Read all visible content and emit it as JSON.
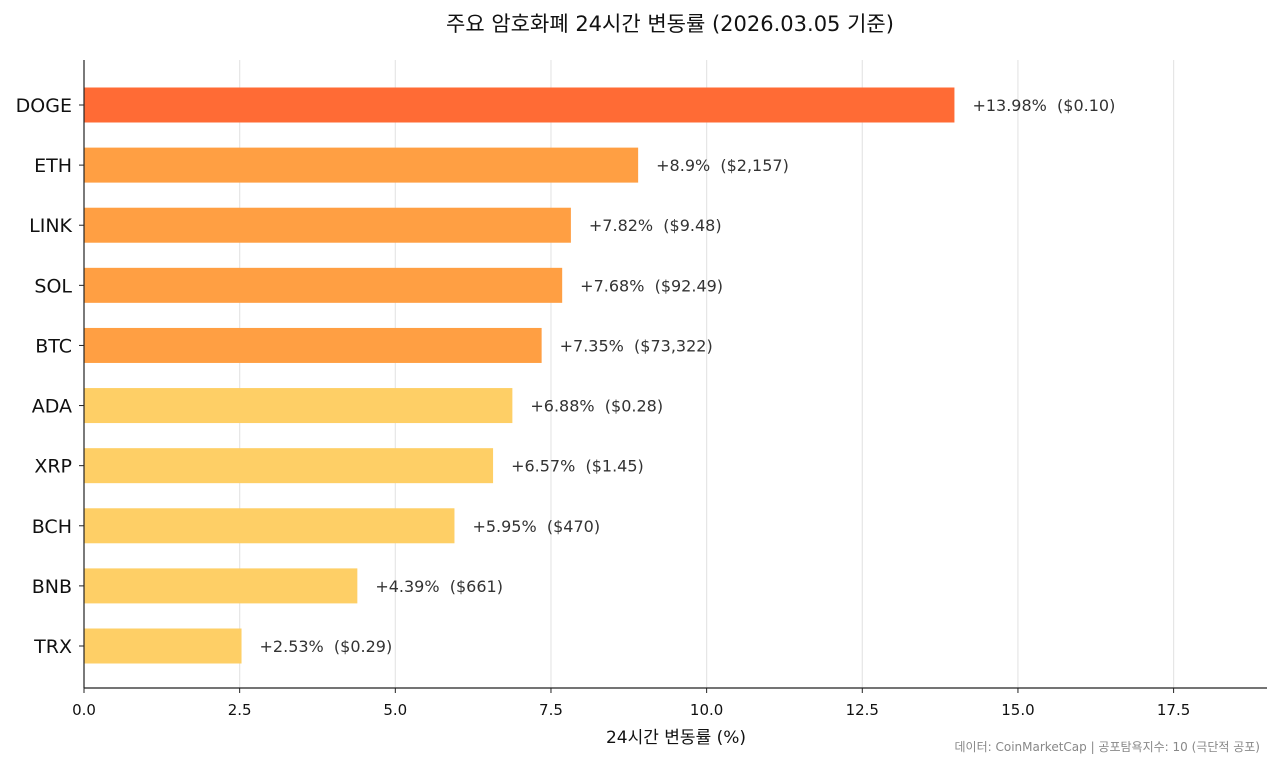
{
  "chart_data": {
    "type": "bar",
    "orientation": "horizontal",
    "title": "주요 암호화폐 24시간 변동률 (2026.03.05 기준)",
    "xlabel": "24시간 변동률 (%)",
    "ylabel": "",
    "xlim": [
      0,
      19
    ],
    "xticks": [
      "0.0",
      "2.5",
      "5.0",
      "7.5",
      "10.0",
      "12.5",
      "15.0",
      "17.5"
    ],
    "grid": "vertical",
    "categories": [
      "DOGE",
      "ETH",
      "LINK",
      "SOL",
      "BTC",
      "ADA",
      "XRP",
      "BCH",
      "BNB",
      "TRX"
    ],
    "values": [
      13.98,
      8.9,
      7.82,
      7.68,
      7.35,
      6.88,
      6.57,
      5.95,
      4.39,
      2.53
    ],
    "data_labels": [
      "+13.98%  ($0.10)",
      "+8.9%  ($2,157)",
      "+7.82%  ($9.48)",
      "+7.68%  ($92.49)",
      "+7.35%  ($73,322)",
      "+6.88%  ($0.28)",
      "+6.57%  ($1.45)",
      "+5.95%  ($470)",
      "+4.39%  ($661)",
      "+2.53%  ($0.29)"
    ],
    "colors": [
      "#FF6B35",
      "#FF9F43",
      "#FF9F43",
      "#FF9F43",
      "#FF9F43",
      "#FECF66",
      "#FECF66",
      "#FECF66",
      "#FECF66",
      "#FECF66"
    ],
    "footer": "데이터: CoinMarketCap | 공포탐욕지수: 10 (극단적 공포)"
  }
}
